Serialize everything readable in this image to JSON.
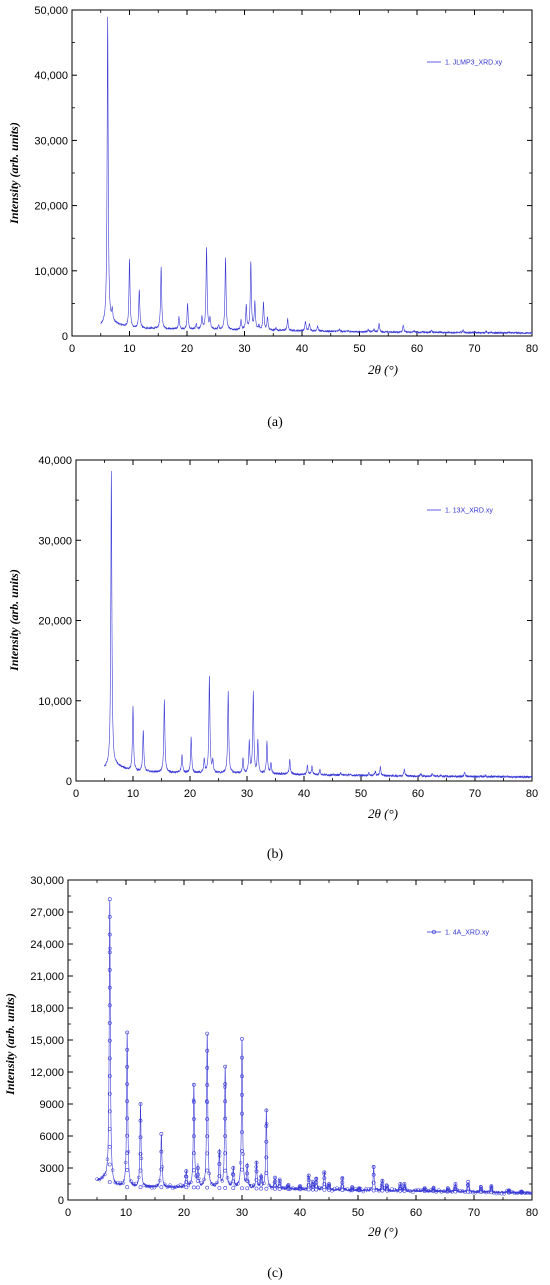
{
  "chart_data": [
    {
      "type": "line",
      "panel": "(a)",
      "xlabel": "2θ (°)",
      "ylabel": "Intensity (arb. units)",
      "xlim": [
        0,
        80
      ],
      "ylim": [
        0,
        50000
      ],
      "x_ticks": [
        0,
        10,
        20,
        30,
        40,
        50,
        60,
        70,
        80
      ],
      "y_ticks": [
        0,
        10000,
        20000,
        30000,
        40000,
        50000
      ],
      "y_tick_labels": [
        "0",
        "10,000",
        "20,000",
        "30,000",
        "40,000",
        "50,000"
      ],
      "color": "#3a3ad6",
      "marker": "none",
      "series": [
        {
          "name": "1. JLMP3_XRD.xy",
          "peaks": [
            [
              6.2,
              48800
            ],
            [
              7.0,
              3600
            ],
            [
              10.0,
              11700
            ],
            [
              11.7,
              7000
            ],
            [
              15.5,
              10500
            ],
            [
              18.6,
              2900
            ],
            [
              20.1,
              4900
            ],
            [
              21.6,
              1800
            ],
            [
              22.6,
              2800
            ],
            [
              23.4,
              13500
            ],
            [
              24.0,
              2500
            ],
            [
              25.5,
              1500
            ],
            [
              26.7,
              11900
            ],
            [
              29.4,
              2400
            ],
            [
              30.3,
              4600
            ],
            [
              31.1,
              11300
            ],
            [
              31.8,
              5100
            ],
            [
              32.5,
              1500
            ],
            [
              33.3,
              5100
            ],
            [
              34.0,
              2800
            ],
            [
              35.5,
              1200
            ],
            [
              37.5,
              2600
            ],
            [
              40.6,
              2200
            ],
            [
              41.3,
              1900
            ],
            [
              42.7,
              1500
            ],
            [
              46.5,
              1000
            ],
            [
              48.0,
              800
            ],
            [
              51.5,
              1000
            ],
            [
              52.5,
              1000
            ],
            [
              53.4,
              1900
            ],
            [
              57.6,
              1700
            ],
            [
              59.5,
              800
            ],
            [
              61.0,
              700
            ],
            [
              62.5,
              900
            ],
            [
              64.0,
              700
            ],
            [
              68.0,
              900
            ],
            [
              70.0,
              600
            ],
            [
              72.0,
              700
            ],
            [
              76.0,
              600
            ]
          ],
          "baseline": [
            [
              5.0,
              1500
            ],
            [
              7.0,
              2000
            ],
            [
              10.0,
              1200
            ],
            [
              20.0,
              1000
            ],
            [
              30.0,
              900
            ],
            [
              40.0,
              800
            ],
            [
              50.0,
              650
            ],
            [
              60.0,
              550
            ],
            [
              80.0,
              450
            ]
          ]
        }
      ]
    },
    {
      "type": "line",
      "panel": "(b)",
      "xlabel": "2θ (°)",
      "ylabel": "Intensity (arb. units)",
      "xlim": [
        0,
        80
      ],
      "ylim": [
        0,
        40000
      ],
      "x_ticks": [
        0,
        10,
        20,
        30,
        40,
        50,
        60,
        70,
        80
      ],
      "y_ticks": [
        0,
        10000,
        20000,
        30000,
        40000
      ],
      "y_tick_labels": [
        "0",
        "10,000",
        "20,000",
        "30,000",
        "40,000"
      ],
      "color": "#3a3ad6",
      "marker": "none",
      "series": [
        {
          "name": "1. 13X_XRD.xy",
          "peaks": [
            [
              6.2,
              38500
            ],
            [
              10.0,
              9200
            ],
            [
              11.8,
              6300
            ],
            [
              15.5,
              10000
            ],
            [
              18.6,
              3300
            ],
            [
              20.2,
              5400
            ],
            [
              22.5,
              2700
            ],
            [
              23.4,
              12900
            ],
            [
              24.0,
              2500
            ],
            [
              26.7,
              11100
            ],
            [
              29.3,
              2700
            ],
            [
              30.4,
              4800
            ],
            [
              31.1,
              10900
            ],
            [
              31.9,
              4900
            ],
            [
              33.5,
              4900
            ],
            [
              34.2,
              2200
            ],
            [
              37.5,
              2700
            ],
            [
              40.6,
              1900
            ],
            [
              41.4,
              1900
            ],
            [
              42.8,
              1400
            ],
            [
              46.5,
              1000
            ],
            [
              48.0,
              800
            ],
            [
              51.4,
              1000
            ],
            [
              52.5,
              1200
            ],
            [
              53.4,
              1700
            ],
            [
              57.6,
              1500
            ],
            [
              60.5,
              900
            ],
            [
              62.5,
              900
            ],
            [
              64.0,
              700
            ],
            [
              68.2,
              1100
            ],
            [
              71.8,
              700
            ],
            [
              75.5,
              600
            ]
          ],
          "baseline": [
            [
              5.0,
              1600
            ],
            [
              7.0,
              1900
            ],
            [
              10.0,
              1200
            ],
            [
              20.0,
              1000
            ],
            [
              30.0,
              950
            ],
            [
              40.0,
              800
            ],
            [
              50.0,
              700
            ],
            [
              60.0,
              600
            ],
            [
              80.0,
              500
            ]
          ]
        }
      ]
    },
    {
      "type": "scatter",
      "panel": "(c)",
      "xlabel": "2θ (°)",
      "ylabel": "Intensity (arb. units)",
      "xlim": [
        0,
        80
      ],
      "ylim": [
        0,
        30000
      ],
      "x_ticks": [
        0,
        10,
        20,
        30,
        40,
        50,
        60,
        70,
        80
      ],
      "y_ticks": [
        0,
        3000,
        6000,
        9000,
        12000,
        15000,
        18000,
        21000,
        24000,
        27000,
        30000
      ],
      "y_tick_labels": [
        "0",
        "3000",
        "6000",
        "9000",
        "12,000",
        "15,000",
        "18,000",
        "21,000",
        "24,000",
        "27,000",
        "30,000"
      ],
      "color": "#3a3ad6",
      "marker": "open-circle",
      "series": [
        {
          "name": "1. 4A_XRD.xy",
          "peaks": [
            [
              7.2,
              28200
            ],
            [
              10.2,
              15700
            ],
            [
              12.5,
              9000
            ],
            [
              16.1,
              6200
            ],
            [
              20.4,
              2700
            ],
            [
              21.7,
              10800
            ],
            [
              22.4,
              3000
            ],
            [
              24.0,
              15600
            ],
            [
              26.1,
              4500
            ],
            [
              27.1,
              12500
            ],
            [
              28.5,
              3000
            ],
            [
              30.0,
              15100
            ],
            [
              30.9,
              3200
            ],
            [
              32.5,
              3500
            ],
            [
              33.3,
              2200
            ],
            [
              34.2,
              8400
            ],
            [
              35.7,
              2100
            ],
            [
              36.5,
              1800
            ],
            [
              38.0,
              1400
            ],
            [
              40.0,
              1300
            ],
            [
              41.5,
              2300
            ],
            [
              42.2,
              1700
            ],
            [
              42.8,
              2000
            ],
            [
              44.2,
              2600
            ],
            [
              45.0,
              1500
            ],
            [
              47.3,
              2000
            ],
            [
              49.0,
              1200
            ],
            [
              50.2,
              1100
            ],
            [
              52.7,
              3100
            ],
            [
              54.2,
              1800
            ],
            [
              55.0,
              1300
            ],
            [
              57.3,
              1500
            ],
            [
              58.0,
              1500
            ],
            [
              61.5,
              1100
            ],
            [
              63.0,
              1100
            ],
            [
              65.5,
              1100
            ],
            [
              66.8,
              1500
            ],
            [
              69.0,
              1700
            ],
            [
              71.2,
              1200
            ],
            [
              73.0,
              1300
            ],
            [
              76.0,
              900
            ],
            [
              78.2,
              800
            ]
          ],
          "baseline": [
            [
              5.0,
              1800
            ],
            [
              6.5,
              2000
            ],
            [
              8.0,
              1300
            ],
            [
              10.0,
              1200
            ],
            [
              20.0,
              1200
            ],
            [
              30.0,
              1100
            ],
            [
              40.0,
              1000
            ],
            [
              50.0,
              900
            ],
            [
              60.0,
              850
            ],
            [
              80.0,
              650
            ]
          ]
        }
      ]
    }
  ],
  "captions": [
    "(a)",
    "(b)",
    "(c)"
  ]
}
